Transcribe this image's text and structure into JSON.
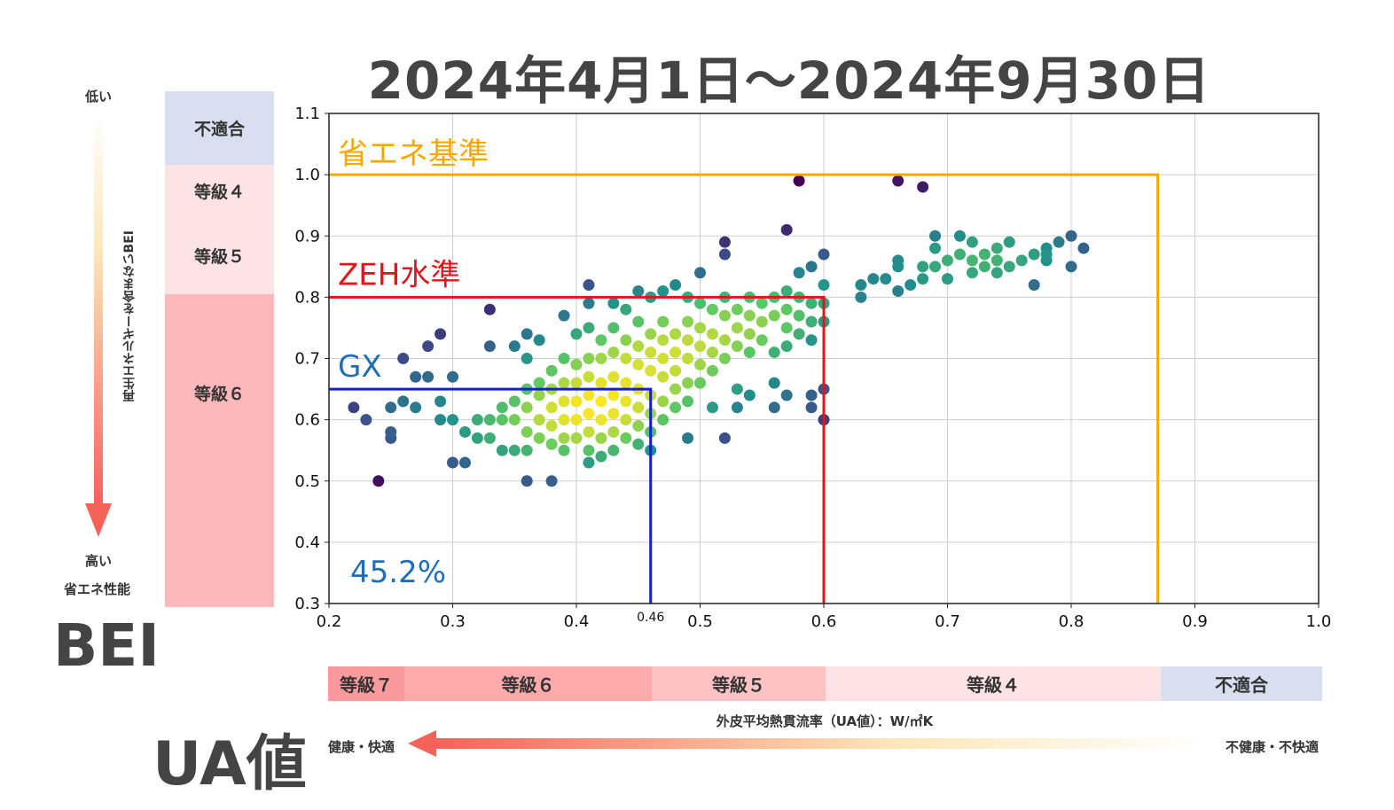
{
  "title": "2024年4月1日～2024年9月30日",
  "bei_scale": {
    "top_label": "低い",
    "bottom_label_1": "高い",
    "bottom_label_2": "省エネ性能",
    "axis_text": "再生エネルギーを含まないBEI",
    "grades": [
      {
        "label": "不適合",
        "color": "#d9dff0"
      },
      {
        "label": "等級４",
        "color": "#fde2e6"
      },
      {
        "label": "等級５",
        "color": "#fde2e6"
      },
      {
        "label": "等級６",
        "color": "#fdb8bb"
      }
    ],
    "big_label": "BEI"
  },
  "ua_scale": {
    "grades": [
      {
        "label": "等級７",
        "color": "#fb9a9c"
      },
      {
        "label": "等級６",
        "color": "#fcaaab"
      },
      {
        "label": "等級５",
        "color": "#fdc2c4"
      },
      {
        "label": "等級４",
        "color": "#fde2e6"
      },
      {
        "label": "不適合",
        "color": "#d9dff0"
      }
    ],
    "axis_text": "外皮平均熱貫流率（UA値）：W/㎡K",
    "left_label": "健康・快適",
    "right_label": "不健康・不快適",
    "big_label": "UA値"
  },
  "chart_data": {
    "type": "scatter",
    "xlim": [
      0.2,
      1.0
    ],
    "ylim": [
      0.3,
      1.1
    ],
    "x_ticks": [
      "0.2",
      "0.3",
      "0.4",
      "0.5",
      "0.6",
      "0.7",
      "0.8",
      "0.9",
      "1.0"
    ],
    "y_ticks": [
      "0.3",
      "0.4",
      "0.5",
      "0.6",
      "0.7",
      "0.8",
      "0.9",
      "1.0",
      "1.1"
    ],
    "x_extra_tick": "0.46",
    "grid": true,
    "colormap": "viridis (point density)",
    "thresholds": [
      {
        "name": "省エネ基準",
        "ua": 0.87,
        "bei": 1.0,
        "color": "#f5a800"
      },
      {
        "name": "ZEH水準",
        "ua": 0.6,
        "bei": 0.8,
        "color": "#e4141c"
      },
      {
        "name": "GX",
        "ua": 0.46,
        "bei": 0.65,
        "color": "#1020d0",
        "label_color": "#1e6fb8"
      }
    ],
    "gx_percentage": "45.2%",
    "points": [
      [
        0.22,
        0.62
      ],
      [
        0.23,
        0.6
      ],
      [
        0.24,
        0.5
      ],
      [
        0.25,
        0.62
      ],
      [
        0.25,
        0.58
      ],
      [
        0.25,
        0.57
      ],
      [
        0.26,
        0.7
      ],
      [
        0.26,
        0.63
      ],
      [
        0.27,
        0.67
      ],
      [
        0.27,
        0.62
      ],
      [
        0.28,
        0.72
      ],
      [
        0.28,
        0.67
      ],
      [
        0.29,
        0.63
      ],
      [
        0.29,
        0.74
      ],
      [
        0.29,
        0.6
      ],
      [
        0.3,
        0.67
      ],
      [
        0.3,
        0.6
      ],
      [
        0.3,
        0.53
      ],
      [
        0.31,
        0.58
      ],
      [
        0.31,
        0.53
      ],
      [
        0.32,
        0.6
      ],
      [
        0.32,
        0.57
      ],
      [
        0.33,
        0.78
      ],
      [
        0.33,
        0.72
      ],
      [
        0.33,
        0.6
      ],
      [
        0.33,
        0.57
      ],
      [
        0.34,
        0.62
      ],
      [
        0.34,
        0.6
      ],
      [
        0.34,
        0.55
      ],
      [
        0.35,
        0.63
      ],
      [
        0.35,
        0.6
      ],
      [
        0.35,
        0.55
      ],
      [
        0.35,
        0.72
      ],
      [
        0.36,
        0.74
      ],
      [
        0.36,
        0.7
      ],
      [
        0.36,
        0.65
      ],
      [
        0.36,
        0.62
      ],
      [
        0.36,
        0.58
      ],
      [
        0.36,
        0.55
      ],
      [
        0.36,
        0.5
      ],
      [
        0.37,
        0.73
      ],
      [
        0.37,
        0.66
      ],
      [
        0.37,
        0.64
      ],
      [
        0.37,
        0.6
      ],
      [
        0.37,
        0.57
      ],
      [
        0.38,
        0.68
      ],
      [
        0.38,
        0.65
      ],
      [
        0.38,
        0.62
      ],
      [
        0.38,
        0.59
      ],
      [
        0.38,
        0.56
      ],
      [
        0.38,
        0.5
      ],
      [
        0.39,
        0.7
      ],
      [
        0.39,
        0.66
      ],
      [
        0.39,
        0.63
      ],
      [
        0.39,
        0.6
      ],
      [
        0.39,
        0.57
      ],
      [
        0.39,
        0.55
      ],
      [
        0.39,
        0.77
      ],
      [
        0.4,
        0.74
      ],
      [
        0.4,
        0.69
      ],
      [
        0.4,
        0.66
      ],
      [
        0.4,
        0.63
      ],
      [
        0.4,
        0.6
      ],
      [
        0.4,
        0.57
      ],
      [
        0.41,
        0.75
      ],
      [
        0.41,
        0.7
      ],
      [
        0.41,
        0.67
      ],
      [
        0.41,
        0.64
      ],
      [
        0.41,
        0.61
      ],
      [
        0.41,
        0.58
      ],
      [
        0.41,
        0.55
      ],
      [
        0.41,
        0.53
      ],
      [
        0.41,
        0.79
      ],
      [
        0.41,
        0.82
      ],
      [
        0.42,
        0.73
      ],
      [
        0.42,
        0.7
      ],
      [
        0.42,
        0.66
      ],
      [
        0.42,
        0.63
      ],
      [
        0.42,
        0.6
      ],
      [
        0.42,
        0.57
      ],
      [
        0.42,
        0.54
      ],
      [
        0.43,
        0.75
      ],
      [
        0.43,
        0.71
      ],
      [
        0.43,
        0.67
      ],
      [
        0.43,
        0.64
      ],
      [
        0.43,
        0.61
      ],
      [
        0.43,
        0.58
      ],
      [
        0.43,
        0.55
      ],
      [
        0.43,
        0.79
      ],
      [
        0.44,
        0.73
      ],
      [
        0.44,
        0.7
      ],
      [
        0.44,
        0.66
      ],
      [
        0.44,
        0.63
      ],
      [
        0.44,
        0.6
      ],
      [
        0.44,
        0.57
      ],
      [
        0.44,
        0.78
      ],
      [
        0.45,
        0.76
      ],
      [
        0.45,
        0.72
      ],
      [
        0.45,
        0.69
      ],
      [
        0.45,
        0.65
      ],
      [
        0.45,
        0.62
      ],
      [
        0.45,
        0.59
      ],
      [
        0.45,
        0.56
      ],
      [
        0.45,
        0.81
      ],
      [
        0.46,
        0.74
      ],
      [
        0.46,
        0.71
      ],
      [
        0.46,
        0.68
      ],
      [
        0.46,
        0.64
      ],
      [
        0.46,
        0.61
      ],
      [
        0.46,
        0.58
      ],
      [
        0.46,
        0.55
      ],
      [
        0.46,
        0.8
      ],
      [
        0.47,
        0.76
      ],
      [
        0.47,
        0.73
      ],
      [
        0.47,
        0.7
      ],
      [
        0.47,
        0.67
      ],
      [
        0.47,
        0.63
      ],
      [
        0.47,
        0.6
      ],
      [
        0.47,
        0.81
      ],
      [
        0.48,
        0.74
      ],
      [
        0.48,
        0.71
      ],
      [
        0.48,
        0.68
      ],
      [
        0.48,
        0.65
      ],
      [
        0.48,
        0.62
      ],
      [
        0.48,
        0.82
      ],
      [
        0.49,
        0.76
      ],
      [
        0.49,
        0.73
      ],
      [
        0.49,
        0.7
      ],
      [
        0.49,
        0.66
      ],
      [
        0.49,
        0.63
      ],
      [
        0.49,
        0.57
      ],
      [
        0.49,
        0.8
      ],
      [
        0.5,
        0.79
      ],
      [
        0.5,
        0.75
      ],
      [
        0.5,
        0.72
      ],
      [
        0.5,
        0.69
      ],
      [
        0.5,
        0.66
      ],
      [
        0.5,
        0.84
      ],
      [
        0.51,
        0.78
      ],
      [
        0.51,
        0.74
      ],
      [
        0.51,
        0.71
      ],
      [
        0.51,
        0.68
      ],
      [
        0.51,
        0.62
      ],
      [
        0.52,
        0.8
      ],
      [
        0.52,
        0.77
      ],
      [
        0.52,
        0.73
      ],
      [
        0.52,
        0.7
      ],
      [
        0.52,
        0.87
      ],
      [
        0.52,
        0.89
      ],
      [
        0.52,
        0.57
      ],
      [
        0.53,
        0.78
      ],
      [
        0.53,
        0.75
      ],
      [
        0.53,
        0.72
      ],
      [
        0.53,
        0.65
      ],
      [
        0.53,
        0.62
      ],
      [
        0.54,
        0.8
      ],
      [
        0.54,
        0.77
      ],
      [
        0.54,
        0.74
      ],
      [
        0.54,
        0.71
      ],
      [
        0.54,
        0.64
      ],
      [
        0.55,
        0.79
      ],
      [
        0.55,
        0.76
      ],
      [
        0.55,
        0.73
      ],
      [
        0.56,
        0.8
      ],
      [
        0.56,
        0.77
      ],
      [
        0.56,
        0.71
      ],
      [
        0.56,
        0.66
      ],
      [
        0.56,
        0.62
      ],
      [
        0.57,
        0.81
      ],
      [
        0.57,
        0.78
      ],
      [
        0.57,
        0.75
      ],
      [
        0.57,
        0.72
      ],
      [
        0.57,
        0.91
      ],
      [
        0.57,
        0.64
      ],
      [
        0.58,
        0.8
      ],
      [
        0.58,
        0.77
      ],
      [
        0.58,
        0.74
      ],
      [
        0.58,
        0.84
      ],
      [
        0.58,
        0.99
      ],
      [
        0.59,
        0.79
      ],
      [
        0.59,
        0.76
      ],
      [
        0.59,
        0.73
      ],
      [
        0.59,
        0.85
      ],
      [
        0.59,
        0.64
      ],
      [
        0.59,
        0.62
      ],
      [
        0.6,
        0.79
      ],
      [
        0.6,
        0.76
      ],
      [
        0.6,
        0.82
      ],
      [
        0.6,
        0.87
      ],
      [
        0.6,
        0.65
      ],
      [
        0.6,
        0.6
      ],
      [
        0.63,
        0.8
      ],
      [
        0.63,
        0.82
      ],
      [
        0.64,
        0.83
      ],
      [
        0.65,
        0.83
      ],
      [
        0.66,
        0.85
      ],
      [
        0.66,
        0.81
      ],
      [
        0.66,
        0.86
      ],
      [
        0.66,
        0.99
      ],
      [
        0.67,
        0.82
      ],
      [
        0.68,
        0.85
      ],
      [
        0.68,
        0.83
      ],
      [
        0.68,
        0.98
      ],
      [
        0.69,
        0.85
      ],
      [
        0.69,
        0.88
      ],
      [
        0.69,
        0.9
      ],
      [
        0.7,
        0.86
      ],
      [
        0.7,
        0.83
      ],
      [
        0.71,
        0.87
      ],
      [
        0.71,
        0.9
      ],
      [
        0.72,
        0.86
      ],
      [
        0.72,
        0.89
      ],
      [
        0.73,
        0.87
      ],
      [
        0.73,
        0.85
      ],
      [
        0.74,
        0.88
      ],
      [
        0.74,
        0.86
      ],
      [
        0.75,
        0.89
      ],
      [
        0.75,
        0.85
      ],
      [
        0.76,
        0.86
      ],
      [
        0.77,
        0.87
      ],
      [
        0.77,
        0.82
      ],
      [
        0.78,
        0.88
      ],
      [
        0.78,
        0.86
      ],
      [
        0.79,
        0.89
      ],
      [
        0.8,
        0.9
      ],
      [
        0.8,
        0.85
      ],
      [
        0.81,
        0.88
      ],
      [
        0.72,
        0.84
      ],
      [
        0.74,
        0.84
      ],
      [
        0.78,
        0.87
      ]
    ]
  }
}
